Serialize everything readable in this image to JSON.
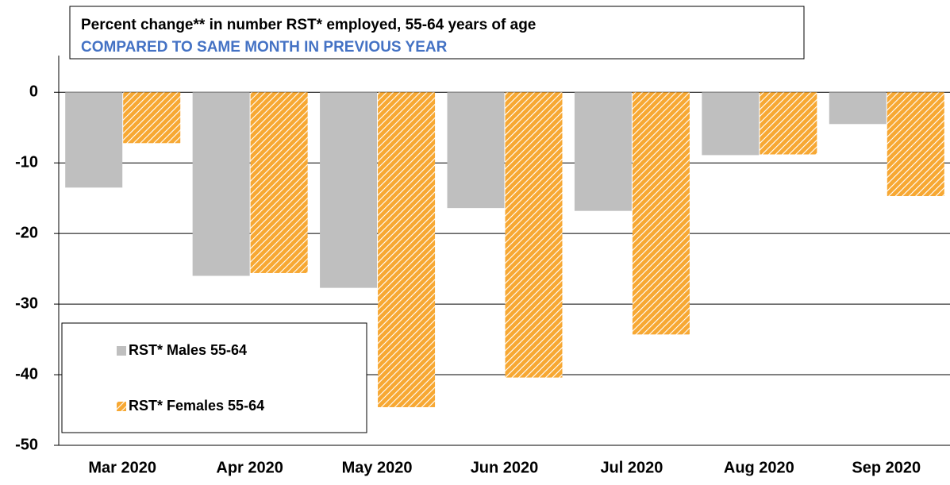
{
  "chart_data": {
    "type": "bar",
    "title": "Percent change** in number RST* employed, 55-64 years of age",
    "subtitle": "COMPARED TO SAME MONTH IN PREVIOUS YEAR",
    "categories": [
      "Mar 2020",
      "Apr 2020",
      "May 2020",
      "Jun 2020",
      "Jul 2020",
      "Aug 2020",
      "Sep 2020"
    ],
    "series": [
      {
        "name": "RST* Males 55-64",
        "color": "#bfbfbf",
        "hatch": false,
        "values": [
          -13.5,
          -26.0,
          -27.7,
          -16.4,
          -16.8,
          -8.9,
          -4.5
        ]
      },
      {
        "name": "RST* Females 55-64",
        "color": "#f7a833",
        "hatch": true,
        "values": [
          -7.2,
          -25.6,
          -44.6,
          -40.4,
          -34.3,
          -8.8,
          -14.7
        ]
      }
    ],
    "ylim": [
      -50,
      5.2
    ],
    "yticks": [
      -50,
      -40,
      -30,
      -20,
      -10,
      0
    ],
    "grid": true,
    "legend": "lower left"
  }
}
